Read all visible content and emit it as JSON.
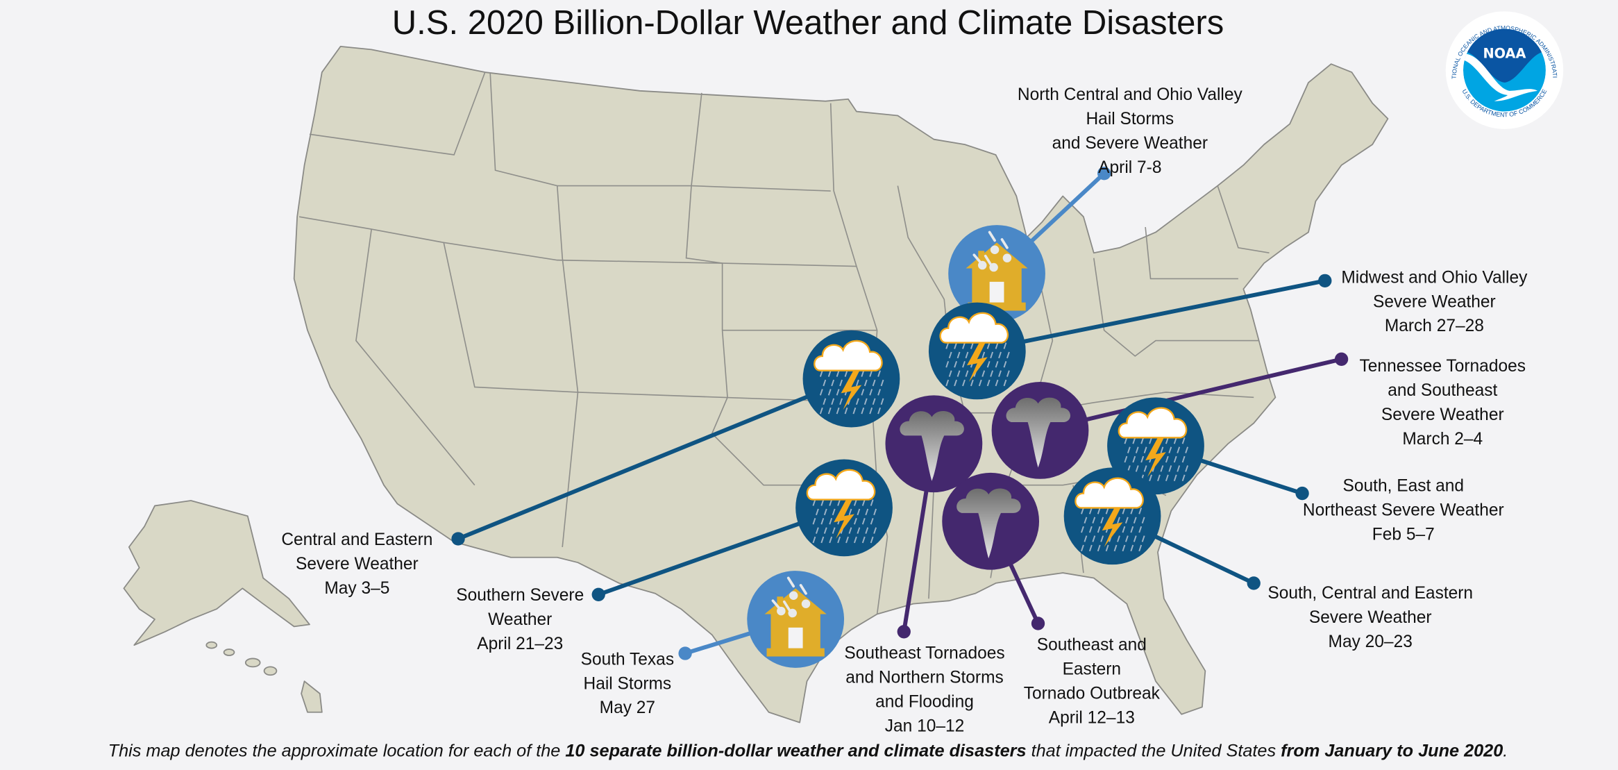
{
  "title": "U.S. 2020 Billion-Dollar Weather and Climate Disasters",
  "logo": {
    "name": "NOAA",
    "ring_text_top": "NATIONAL OCEANIC AND ATMOSPHERIC ADMINISTRATION",
    "ring_text_bottom": "U.S. DEPARTMENT OF COMMERCE",
    "colors": {
      "dark": "#0a55a3",
      "light": "#00a5e3"
    }
  },
  "colors": {
    "land": "#d9d8c6",
    "background": "#f3f3f5",
    "hail": "#4a88c7",
    "severe_storm": "#0f5482",
    "tornado": "#44286e",
    "house": "#e0ad2a",
    "lightning": "#f3a81b"
  },
  "events": [
    {
      "type": "hail",
      "icon": "hail-house-icon",
      "lines": [
        "North Central and Ohio Valley",
        "Hail Storms",
        "and Severe Weather",
        "April 7-8"
      ]
    },
    {
      "type": "severe_storm",
      "icon": "storm-cloud-icon",
      "lines": [
        "Midwest and Ohio Valley",
        "Severe Weather",
        "March 27–28"
      ]
    },
    {
      "type": "severe_storm",
      "icon": "storm-cloud-icon",
      "lines": [
        "Central and Eastern",
        "Severe Weather",
        "May 3–5"
      ]
    },
    {
      "type": "tornado",
      "icon": "tornado-icon",
      "lines": [
        "Tennessee Tornadoes",
        "and Southeast",
        "Severe Weather",
        "March 2–4"
      ]
    },
    {
      "type": "severe_storm",
      "icon": "storm-cloud-icon",
      "lines": [
        "South, East and",
        "Northeast Severe Weather",
        "Feb 5–7"
      ]
    },
    {
      "type": "severe_storm",
      "icon": "storm-cloud-icon",
      "lines": [
        "Southern Severe",
        "Weather",
        "April 21–23"
      ]
    },
    {
      "type": "tornado",
      "icon": "tornado-icon",
      "lines": [
        "Southeast Tornadoes",
        "and Northern Storms",
        "and Flooding",
        "Jan 10–12"
      ]
    },
    {
      "type": "tornado",
      "icon": "tornado-icon",
      "lines": [
        "Southeast and",
        "Eastern",
        "Tornado Outbreak",
        "April 12–13"
      ]
    },
    {
      "type": "severe_storm",
      "icon": "storm-cloud-icon",
      "lines": [
        "South, Central and Eastern",
        "Severe Weather",
        "May 20–23"
      ]
    },
    {
      "type": "hail",
      "icon": "hail-house-icon",
      "lines": [
        "South Texas",
        "Hail Storms",
        "May 27"
      ]
    }
  ],
  "caption": {
    "pre": "This map denotes the approximate location for each of the ",
    "bold1": "10 separate billion-dollar weather and climate disasters",
    "mid": " that impacted the United States ",
    "bold2": "from January to June 2020",
    "post": "."
  }
}
